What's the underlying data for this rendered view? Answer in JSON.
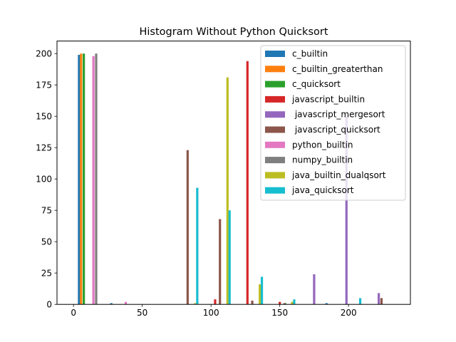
{
  "chart_data": {
    "type": "bar",
    "title": "Histogram Without Python Quicksort",
    "xlabel": "",
    "ylabel": "",
    "xlim": [
      -12,
      245
    ],
    "ylim": [
      0,
      210
    ],
    "xticks": [
      0,
      50,
      100,
      150,
      200
    ],
    "yticks": [
      0,
      25,
      50,
      75,
      100,
      125,
      150,
      175,
      200
    ],
    "grid": false,
    "legend_position": "top-right",
    "series": [
      {
        "name": "c_builtin",
        "color": "#1f77b4",
        "points": [
          {
            "x": 4.0,
            "y": 199
          },
          {
            "x": 27.5,
            "y": 1
          },
          {
            "x": 184.0,
            "y": 1
          }
        ]
      },
      {
        "name": "c_builtin_greaterthan",
        "color": "#ff7f0e",
        "points": [
          {
            "x": 5.5,
            "y": 200
          },
          {
            "x": 160.0,
            "y": 1
          }
        ]
      },
      {
        "name": "c_quicksort",
        "color": "#2ca02c",
        "points": [
          {
            "x": 7.5,
            "y": 200
          },
          {
            "x": 154.0,
            "y": 1
          }
        ]
      },
      {
        "name": "javascript_builtin",
        "color": "#d62728",
        "points": [
          {
            "x": 103.0,
            "y": 4
          },
          {
            "x": 126.5,
            "y": 194
          },
          {
            "x": 150.0,
            "y": 2
          }
        ]
      },
      {
        "name": " javascript_mergesort",
        "color": "#9467bd",
        "points": [
          {
            "x": 175.0,
            "y": 24
          },
          {
            "x": 198.5,
            "y": 150
          },
          {
            "x": 222.0,
            "y": 9
          }
        ]
      },
      {
        "name": " javascript_quicksort",
        "color": "#8c564b",
        "points": [
          {
            "x": 83.0,
            "y": 123
          },
          {
            "x": 106.5,
            "y": 68
          },
          {
            "x": 130.0,
            "y": 3
          },
          {
            "x": 153.5,
            "y": 1
          },
          {
            "x": 224.0,
            "y": 5
          }
        ]
      },
      {
        "name": "python_builtin",
        "color": "#e377c2",
        "points": [
          {
            "x": 14.5,
            "y": 198
          },
          {
            "x": 38.0,
            "y": 2
          }
        ]
      },
      {
        "name": "numpy_builtin",
        "color": "#7f7f7f",
        "points": [
          {
            "x": 16.5,
            "y": 200
          }
        ]
      },
      {
        "name": "java_builtin_dualqsort",
        "color": "#bcbd22",
        "points": [
          {
            "x": 88.5,
            "y": 1
          },
          {
            "x": 112.0,
            "y": 181
          },
          {
            "x": 135.5,
            "y": 16
          },
          {
            "x": 159.0,
            "y": 2
          }
        ]
      },
      {
        "name": "java_quicksort",
        "color": "#17becf",
        "points": [
          {
            "x": 90.0,
            "y": 93
          },
          {
            "x": 113.5,
            "y": 75
          },
          {
            "x": 137.0,
            "y": 22
          },
          {
            "x": 160.5,
            "y": 4
          },
          {
            "x": 208.5,
            "y": 5
          }
        ]
      }
    ]
  }
}
